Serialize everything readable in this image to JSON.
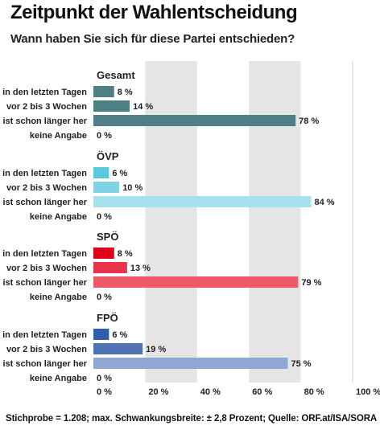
{
  "chart_data": {
    "type": "bar",
    "orientation": "horizontal",
    "title": "Zeitpunkt der Wahlentscheidung",
    "subtitle": "Wann haben Sie sich für diese Partei entschieden?",
    "categories": [
      "in den letzten Tagen",
      "vor 2 bis 3 Wochen",
      "ist schon länger her",
      "keine Angabe"
    ],
    "groups": [
      {
        "name": "Gesamt",
        "values": [
          8,
          14,
          78,
          0
        ],
        "colors": [
          "#4f7f86",
          "#4f7f86",
          "#4f7f86",
          "#4f7f86"
        ]
      },
      {
        "name": "ÖVP",
        "values": [
          6,
          10,
          84,
          0
        ],
        "colors": [
          "#5bc8dc",
          "#7fd3e4",
          "#a7e1ec",
          "#a7e1ec"
        ]
      },
      {
        "name": "SPÖ",
        "values": [
          8,
          13,
          79,
          0
        ],
        "colors": [
          "#e0001a",
          "#e8344a",
          "#ee5a6a",
          "#ee5a6a"
        ]
      },
      {
        "name": "FPÖ",
        "values": [
          6,
          19,
          75,
          0
        ],
        "colors": [
          "#2f5faa",
          "#4f73b3",
          "#8ea7d3",
          "#8ea7d3"
        ]
      }
    ],
    "value_suffix": " %",
    "xlim": [
      0,
      100
    ],
    "xticks": [
      0,
      20,
      40,
      60,
      80,
      100
    ],
    "xtick_labels": [
      "0 %",
      "20 %",
      "40 %",
      "60 %",
      "80 %",
      "100 %"
    ],
    "grid": "alternating-bands"
  },
  "footnote": "Stichprobe = 1.208; max. Schwankungsbreite: ± 2,8 Prozent; Quelle: ORF.at/ISA/SORA"
}
